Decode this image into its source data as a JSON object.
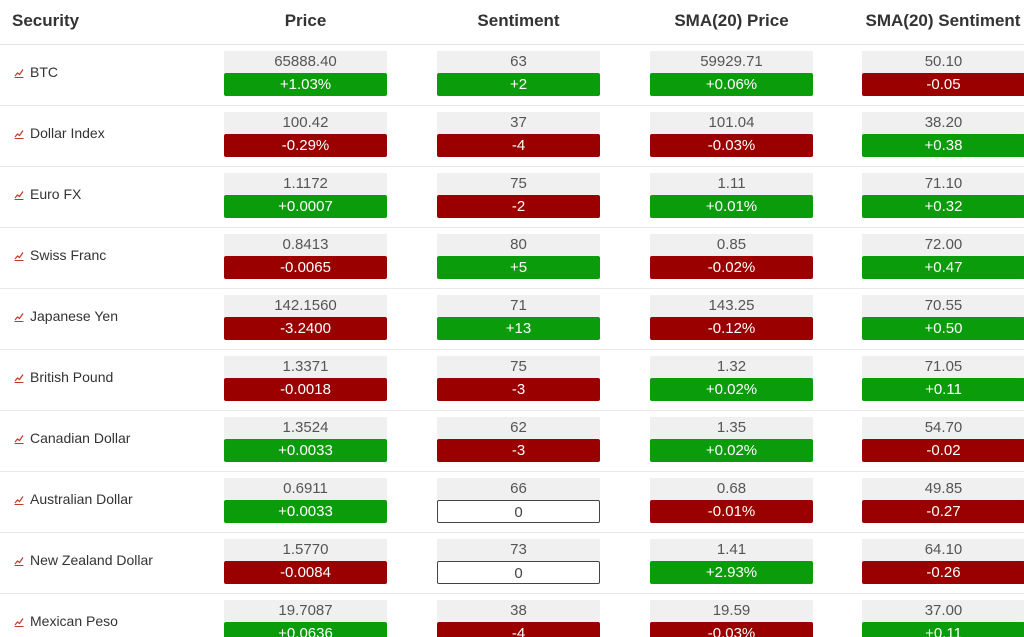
{
  "header": {
    "security": "Security",
    "price": "Price",
    "sentiment": "Sentiment",
    "sma_price": "SMA(20) Price",
    "sma_sentiment": "SMA(20) Sentiment"
  },
  "colors": {
    "up": "#0a9c0a",
    "down": "#9a0000",
    "neutral_bg": "#ffffff",
    "value_bg": "#f0f0f0",
    "chart_icon": "#c0392b"
  },
  "row_icon": "chart-line-icon",
  "rows": [
    {
      "name": "BTC",
      "price": "65888.40",
      "price_chg": "+1.03%",
      "price_dir": "up",
      "sent": "63",
      "sent_chg": "+2",
      "sent_dir": "up",
      "sma_price": "59929.71",
      "sma_price_chg": "+0.06%",
      "sma_price_dir": "up",
      "sma_sent": "50.10",
      "sma_sent_chg": "-0.05",
      "sma_sent_dir": "down"
    },
    {
      "name": "Dollar Index",
      "price": "100.42",
      "price_chg": "-0.29%",
      "price_dir": "down",
      "sent": "37",
      "sent_chg": "-4",
      "sent_dir": "down",
      "sma_price": "101.04",
      "sma_price_chg": "-0.03%",
      "sma_price_dir": "down",
      "sma_sent": "38.20",
      "sma_sent_chg": "+0.38",
      "sma_sent_dir": "up"
    },
    {
      "name": "Euro FX",
      "price": "1.1172",
      "price_chg": "+0.0007",
      "price_dir": "up",
      "sent": "75",
      "sent_chg": "-2",
      "sent_dir": "down",
      "sma_price": "1.11",
      "sma_price_chg": "+0.01%",
      "sma_price_dir": "up",
      "sma_sent": "71.10",
      "sma_sent_chg": "+0.32",
      "sma_sent_dir": "up"
    },
    {
      "name": "Swiss Franc",
      "price": "0.8413",
      "price_chg": "-0.0065",
      "price_dir": "down",
      "sent": "80",
      "sent_chg": "+5",
      "sent_dir": "up",
      "sma_price": "0.85",
      "sma_price_chg": "-0.02%",
      "sma_price_dir": "down",
      "sma_sent": "72.00",
      "sma_sent_chg": "+0.47",
      "sma_sent_dir": "up"
    },
    {
      "name": "Japanese Yen",
      "price": "142.1560",
      "price_chg": "-3.2400",
      "price_dir": "down",
      "sent": "71",
      "sent_chg": "+13",
      "sent_dir": "up",
      "sma_price": "143.25",
      "sma_price_chg": "-0.12%",
      "sma_price_dir": "down",
      "sma_sent": "70.55",
      "sma_sent_chg": "+0.50",
      "sma_sent_dir": "up"
    },
    {
      "name": "British Pound",
      "price": "1.3371",
      "price_chg": "-0.0018",
      "price_dir": "down",
      "sent": "75",
      "sent_chg": "-3",
      "sent_dir": "down",
      "sma_price": "1.32",
      "sma_price_chg": "+0.02%",
      "sma_price_dir": "up",
      "sma_sent": "71.05",
      "sma_sent_chg": "+0.11",
      "sma_sent_dir": "up"
    },
    {
      "name": "Canadian Dollar",
      "price": "1.3524",
      "price_chg": "+0.0033",
      "price_dir": "up",
      "sent": "62",
      "sent_chg": "-3",
      "sent_dir": "down",
      "sma_price": "1.35",
      "sma_price_chg": "+0.02%",
      "sma_price_dir": "up",
      "sma_sent": "54.70",
      "sma_sent_chg": "-0.02",
      "sma_sent_dir": "down"
    },
    {
      "name": "Australian Dollar",
      "price": "0.6911",
      "price_chg": "+0.0033",
      "price_dir": "up",
      "sent": "66",
      "sent_chg": "0",
      "sent_dir": "neutral",
      "sma_price": "0.68",
      "sma_price_chg": "-0.01%",
      "sma_price_dir": "down",
      "sma_sent": "49.85",
      "sma_sent_chg": "-0.27",
      "sma_sent_dir": "down"
    },
    {
      "name": "New Zealand Dollar",
      "price": "1.5770",
      "price_chg": "-0.0084",
      "price_dir": "down",
      "sent": "73",
      "sent_chg": "0",
      "sent_dir": "neutral",
      "sma_price": "1.41",
      "sma_price_chg": "+2.93%",
      "sma_price_dir": "up",
      "sma_sent": "64.10",
      "sma_sent_chg": "-0.26",
      "sma_sent_dir": "down"
    },
    {
      "name": "Mexican Peso",
      "price": "19.7087",
      "price_chg": "+0.0636",
      "price_dir": "up",
      "sent": "38",
      "sent_chg": "-4",
      "sent_dir": "down",
      "sma_price": "19.59",
      "sma_price_chg": "-0.03%",
      "sma_price_dir": "down",
      "sma_sent": "37.00",
      "sma_sent_chg": "+0.11",
      "sma_sent_dir": "up"
    }
  ]
}
